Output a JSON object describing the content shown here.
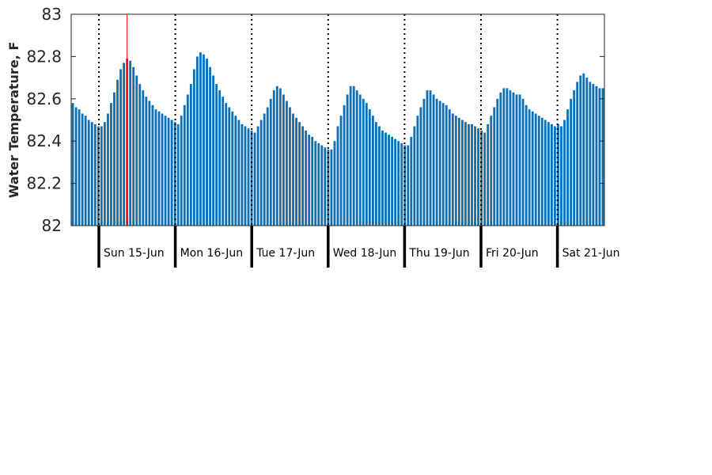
{
  "chart_data": {
    "type": "bar",
    "title": "",
    "xlabel": "",
    "ylabel": "Water Temperature, F",
    "ylim": [
      82,
      83
    ],
    "yticks": [
      82,
      82.2,
      82.4,
      82.6,
      82.8,
      83
    ],
    "x_unit": "hours since start of record (hourly samples)",
    "bar_color": "#0e6fb5",
    "marker_color": "#ff0000",
    "marker_at": 17.5,
    "grid": false,
    "day_labels": [
      "Sun 15-Jun",
      "Mon 16-Jun",
      "Tue 17-Jun",
      "Wed 18-Jun",
      "Thu 19-Jun",
      "Fri 20-Jun",
      "Sat 21-Jun"
    ],
    "values": [
      82.58,
      82.56,
      82.55,
      82.53,
      82.52,
      82.5,
      82.49,
      82.48,
      82.47,
      82.47,
      82.49,
      82.53,
      82.58,
      82.63,
      82.69,
      82.74,
      82.77,
      82.79,
      82.78,
      82.75,
      82.71,
      82.67,
      82.64,
      82.61,
      82.59,
      82.57,
      82.55,
      82.54,
      82.53,
      82.52,
      82.51,
      82.5,
      82.49,
      82.48,
      82.52,
      82.57,
      82.62,
      82.67,
      82.74,
      82.8,
      82.82,
      82.81,
      82.79,
      82.75,
      82.71,
      82.67,
      82.64,
      82.61,
      82.58,
      82.56,
      82.54,
      82.52,
      82.5,
      82.48,
      82.47,
      82.46,
      82.45,
      82.44,
      82.47,
      82.5,
      82.53,
      82.56,
      82.6,
      82.64,
      82.66,
      82.65,
      82.62,
      82.59,
      82.56,
      82.53,
      82.51,
      82.49,
      82.47,
      82.45,
      82.43,
      82.42,
      82.4,
      82.39,
      82.38,
      82.37,
      82.36,
      82.36,
      82.4,
      82.47,
      82.52,
      82.57,
      82.62,
      82.66,
      82.66,
      82.64,
      82.62,
      82.6,
      82.58,
      82.55,
      82.52,
      82.49,
      82.47,
      82.45,
      82.44,
      82.43,
      82.42,
      82.41,
      82.4,
      82.39,
      82.38,
      82.38,
      82.42,
      82.47,
      82.52,
      82.56,
      82.6,
      82.64,
      82.64,
      82.62,
      82.6,
      82.59,
      82.58,
      82.57,
      82.55,
      82.53,
      82.52,
      82.51,
      82.5,
      82.49,
      82.48,
      82.48,
      82.47,
      82.46,
      82.45,
      82.44,
      82.48,
      82.52,
      82.56,
      82.6,
      82.63,
      82.65,
      82.65,
      82.64,
      82.63,
      82.62,
      82.62,
      82.6,
      82.57,
      82.55,
      82.54,
      82.53,
      82.52,
      82.51,
      82.5,
      82.49,
      82.48,
      82.47,
      82.48,
      82.47,
      82.5,
      82.55,
      82.6,
      82.64,
      82.68,
      82.71,
      82.72,
      82.7,
      82.68,
      82.67,
      82.66,
      82.65,
      82.65
    ]
  }
}
